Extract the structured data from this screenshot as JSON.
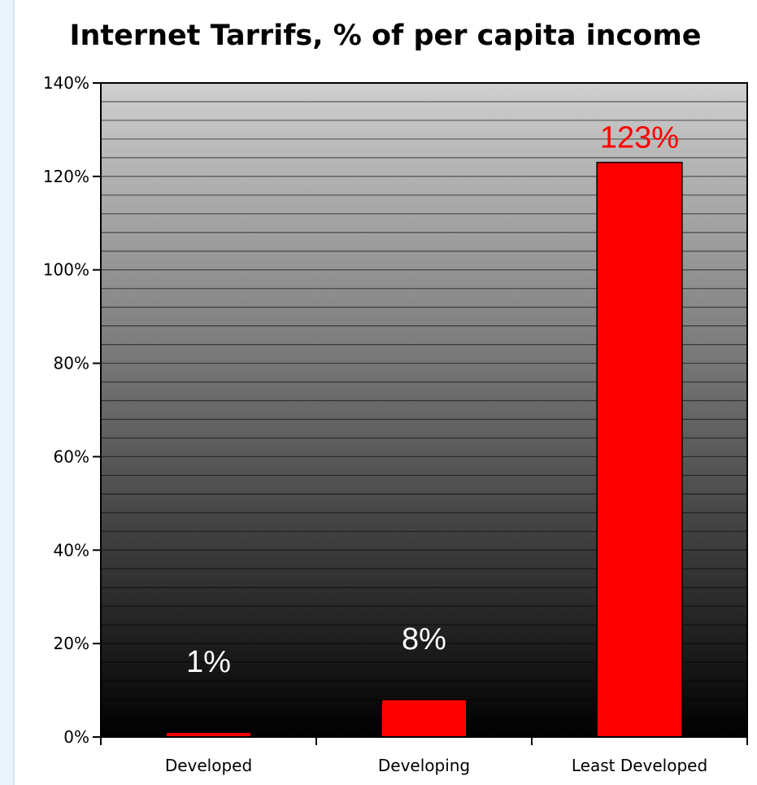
{
  "chart_data": {
    "type": "bar",
    "title": "Internet Tarrifs, % of per capita income",
    "xlabel": "",
    "ylabel": "",
    "categories": [
      "Developed",
      "Developing",
      "Least Developed"
    ],
    "values": [
      1,
      8,
      123
    ],
    "data_labels": [
      "1%",
      "8%",
      "123%"
    ],
    "data_label_colors": [
      "#ffffff",
      "#ffffff",
      "#ff0000"
    ],
    "ylim": [
      0,
      140
    ],
    "yticks": [
      0,
      20,
      40,
      60,
      80,
      100,
      120,
      140
    ],
    "ytick_labels": [
      "0%",
      "20%",
      "40%",
      "60%",
      "80%",
      "100%",
      "120%",
      "140%"
    ],
    "grid": true,
    "bar_color": "#ff0000",
    "background_gradient": [
      "#cfcfcf",
      "#000000"
    ],
    "legend": "none"
  }
}
